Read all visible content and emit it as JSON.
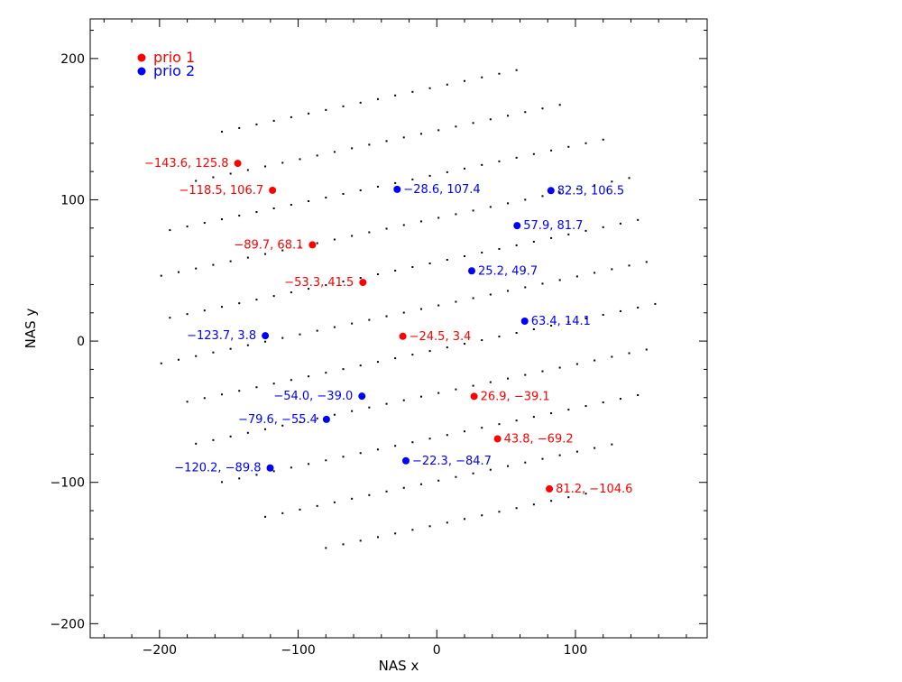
{
  "chart_data": {
    "type": "scatter",
    "xlabel": "NAS x",
    "ylabel": "NAS y",
    "xlim": [
      -250,
      195
    ],
    "ylim": [
      -210,
      228
    ],
    "x_ticks": [
      -200,
      -100,
      0,
      100
    ],
    "x_tick_labels": [
      "−200",
      "−100",
      "0",
      "100"
    ],
    "y_ticks": [
      -200,
      -100,
      0,
      100,
      200
    ],
    "y_tick_labels": [
      "−200",
      "−100",
      "0",
      "100",
      "200"
    ],
    "legend": {
      "placement": "top-left",
      "entries": [
        {
          "label": "prio 1",
          "color": "#ff0000"
        },
        {
          "label": "prio 2",
          "color": "#0000ff"
        }
      ]
    },
    "background_grid": {
      "description_color": "#000000",
      "clip_radius": 185,
      "clip_center": [
        -20,
        25
      ],
      "rows": 12,
      "row_spacing": 31,
      "column_spacing": 12.5,
      "tilt_slope": 0.205
    },
    "series": [
      {
        "name": "prio 1",
        "color": "#ff0000",
        "points": [
          {
            "x": -143.6,
            "y": 125.8,
            "label": "−143.6, 125.8"
          },
          {
            "x": -118.5,
            "y": 106.7,
            "label": "−118.5, 106.7"
          },
          {
            "x": -89.7,
            "y": 68.1,
            "label": "−89.7, 68.1"
          },
          {
            "x": -53.3,
            "y": 41.5,
            "label": "−53.3, 41.5"
          },
          {
            "x": -24.5,
            "y": 3.4,
            "label": "−24.5, 3.4"
          },
          {
            "x": 26.9,
            "y": -39.1,
            "label": "26.9, −39.1"
          },
          {
            "x": 43.8,
            "y": -69.2,
            "label": "43.8, −69.2"
          },
          {
            "x": 81.2,
            "y": -104.6,
            "label": "81.2, −104.6"
          }
        ]
      },
      {
        "name": "prio 2",
        "color": "#0000ff",
        "points": [
          {
            "x": -28.6,
            "y": 107.4,
            "label": "−28.6, 107.4"
          },
          {
            "x": 82.3,
            "y": 106.5,
            "label": "82.3, 106.5"
          },
          {
            "x": 57.9,
            "y": 81.7,
            "label": "57.9, 81.7"
          },
          {
            "x": 25.2,
            "y": 49.7,
            "label": "25.2, 49.7"
          },
          {
            "x": 63.4,
            "y": 14.1,
            "label": "63.4, 14.1"
          },
          {
            "x": -123.7,
            "y": 3.8,
            "label": "−123.7, 3.8"
          },
          {
            "x": -54.0,
            "y": -39.0,
            "label": "−54.0, −39.0"
          },
          {
            "x": -79.6,
            "y": -55.4,
            "label": "−79.6, −55.4"
          },
          {
            "x": -22.3,
            "y": -84.7,
            "label": "−22.3, −84.7"
          },
          {
            "x": -120.2,
            "y": -89.8,
            "label": "−120.2, −89.8"
          }
        ]
      }
    ]
  }
}
